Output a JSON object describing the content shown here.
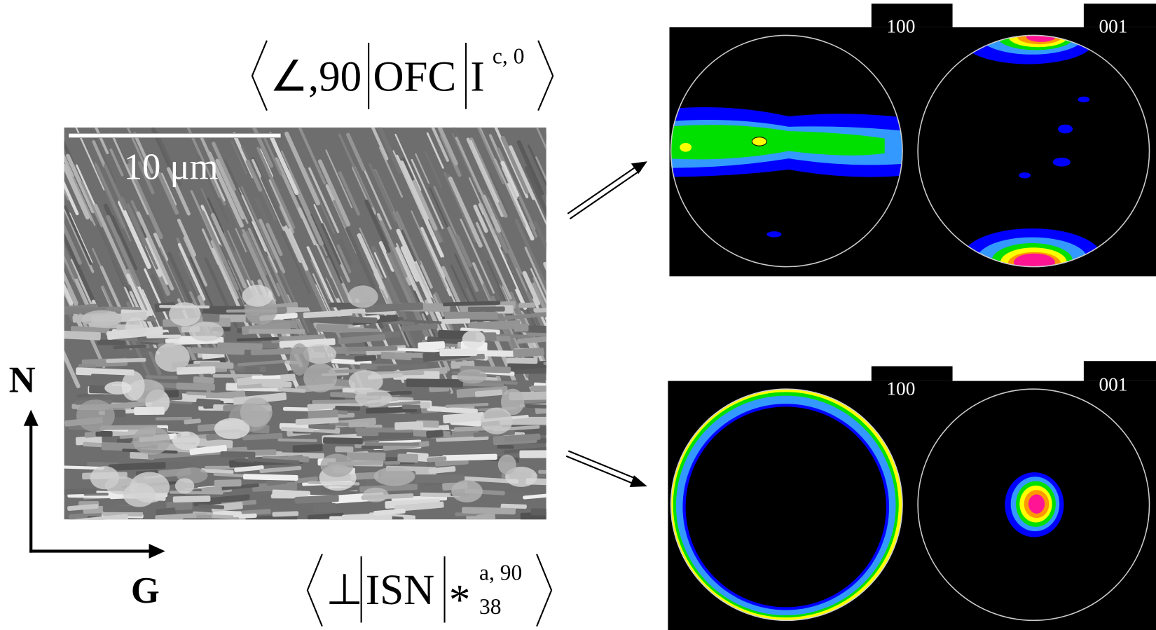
{
  "figure": {
    "scale_bar": "10 μm",
    "axes": {
      "vertical": "N",
      "horizontal": "G"
    },
    "top": {
      "notation": {
        "angle": "∠,90",
        "code": "OFC",
        "symbol": "I",
        "superscript": "c, 0"
      },
      "pole_figures": [
        "100",
        "001"
      ]
    },
    "bottom": {
      "notation": {
        "symbol": "⊥",
        "code": "ISN",
        "operator": "*",
        "superscript": "a, 90",
        "subscript": "38"
      },
      "pole_figures": [
        "100",
        "001"
      ]
    }
  }
}
